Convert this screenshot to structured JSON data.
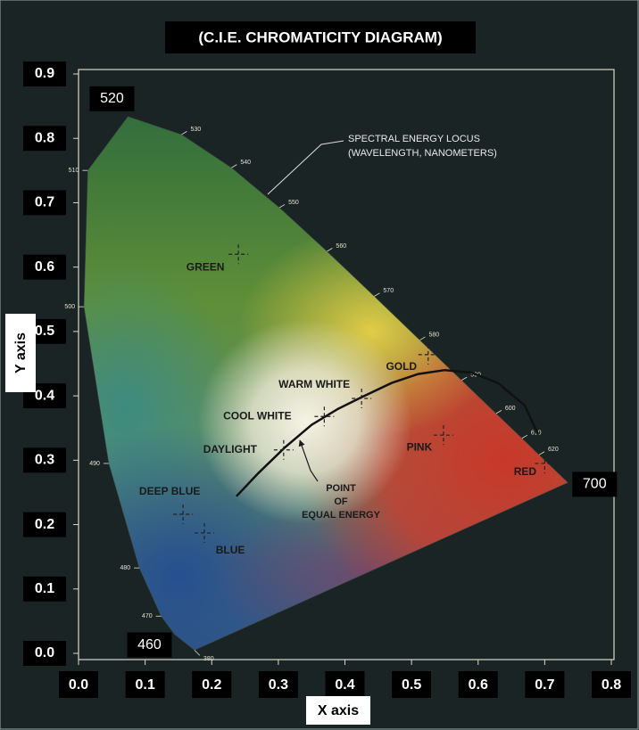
{
  "chart_data": {
    "type": "chromaticity",
    "title": "(C.I.E. CHROMATICITY DIAGRAM)",
    "x_label": "X axis",
    "y_label": "Y axis",
    "xlim": [
      0,
      0.8
    ],
    "ylim": [
      0,
      0.9
    ],
    "xticks": [
      {
        "value": 0,
        "label": "0.0"
      },
      0.1,
      0.2,
      0.3,
      0.4,
      0.5,
      0.6,
      0.7,
      0.8
    ],
    "yticks": [
      {
        "value": 0,
        "label": "0.0"
      },
      0.1,
      0.2,
      0.3,
      0.4,
      0.5,
      0.6,
      0.7,
      0.8,
      0.9
    ],
    "spectral_locus": {
      "labels": [
        "380",
        "460",
        "470",
        "480",
        "490",
        "500",
        "510",
        "520",
        "530",
        "540",
        "550",
        "560",
        "570",
        "580",
        "590",
        "600",
        "610",
        "620",
        "700"
      ],
      "x": [
        0.1741,
        0.144,
        0.1241,
        0.0913,
        0.0454,
        0.0082,
        0.0139,
        0.0743,
        0.1547,
        0.2296,
        0.3016,
        0.3731,
        0.4441,
        0.5125,
        0.5752,
        0.627,
        0.6658,
        0.6915,
        0.7347
      ],
      "y": [
        0.005,
        0.0297,
        0.0578,
        0.1327,
        0.295,
        0.5384,
        0.7502,
        0.8338,
        0.8059,
        0.7543,
        0.6923,
        0.6245,
        0.5547,
        0.4866,
        0.4242,
        0.3725,
        0.334,
        0.3083,
        0.2653
      ],
      "boxed": [
        false,
        true,
        false,
        false,
        false,
        false,
        false,
        true,
        false,
        false,
        false,
        false,
        false,
        false,
        false,
        false,
        false,
        false,
        true
      ]
    },
    "planckian_locus": {
      "color": "#111111",
      "x": [
        0.237,
        0.27,
        0.31,
        0.35,
        0.39,
        0.425,
        0.47,
        0.51,
        0.55,
        0.59,
        0.63,
        0.67,
        0.69
      ],
      "y": [
        0.244,
        0.28,
        0.32,
        0.355,
        0.38,
        0.398,
        0.42,
        0.434,
        0.44,
        0.436,
        0.42,
        0.385,
        0.34
      ]
    },
    "points": [
      {
        "label": "GREEN",
        "x": 0.24,
        "y": 0.62
      },
      {
        "label": "GOLD",
        "x": 0.525,
        "y": 0.464
      },
      {
        "label": "WARM WHITE",
        "x": 0.425,
        "y": 0.396
      },
      {
        "label": "COOL WHITE",
        "x": 0.369,
        "y": 0.368
      },
      {
        "label": "DAYLIGHT",
        "x": 0.308,
        "y": 0.316
      },
      {
        "label": "PINK",
        "x": 0.548,
        "y": 0.339
      },
      {
        "label": "RED",
        "x": 0.7,
        "y": 0.295
      },
      {
        "label": "DEEP BLUE",
        "x": 0.157,
        "y": 0.216
      },
      {
        "label": "BLUE",
        "x": 0.189,
        "y": 0.187
      }
    ],
    "annotations": [
      {
        "lines": [
          "SPECTRAL ENERGY LOCUS",
          "(WAVELENGTH, NANOMETERS)"
        ]
      },
      {
        "lines": [
          "POINT",
          "OF",
          "EQUAL ENERGY"
        ]
      }
    ]
  }
}
